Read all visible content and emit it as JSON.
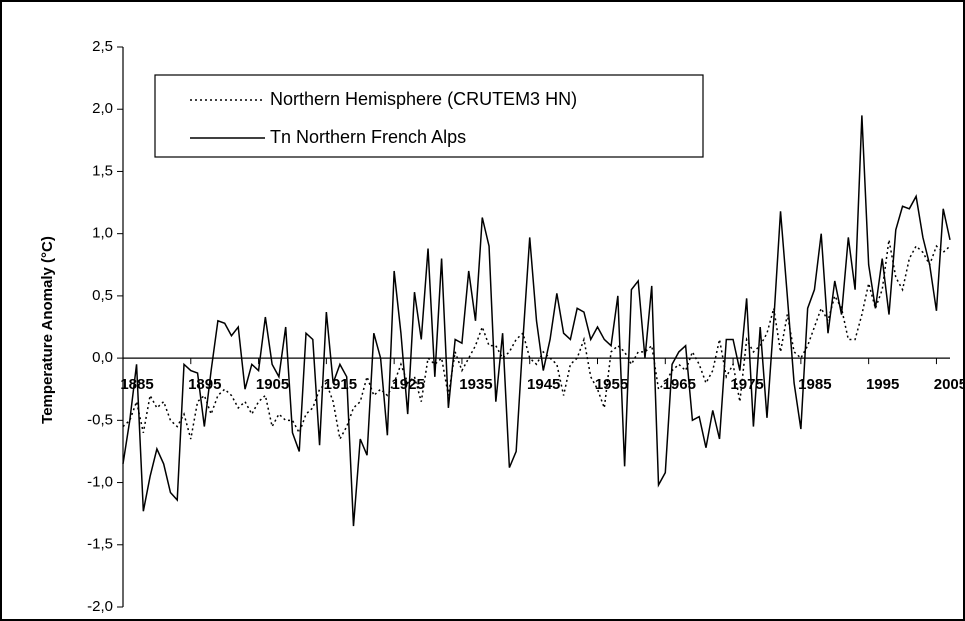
{
  "chart_data": {
    "type": "line",
    "y_label": "Temperature Anomaly (°C)",
    "x": [
      1885,
      1886,
      1887,
      1888,
      1889,
      1890,
      1891,
      1892,
      1893,
      1894,
      1895,
      1896,
      1897,
      1898,
      1899,
      1900,
      1901,
      1902,
      1903,
      1904,
      1905,
      1906,
      1907,
      1908,
      1909,
      1910,
      1911,
      1912,
      1913,
      1914,
      1915,
      1916,
      1917,
      1918,
      1919,
      1920,
      1921,
      1922,
      1923,
      1924,
      1925,
      1926,
      1927,
      1928,
      1929,
      1930,
      1931,
      1932,
      1933,
      1934,
      1935,
      1936,
      1937,
      1938,
      1939,
      1940,
      1941,
      1942,
      1943,
      1944,
      1945,
      1946,
      1947,
      1948,
      1949,
      1950,
      1951,
      1952,
      1953,
      1954,
      1955,
      1956,
      1957,
      1958,
      1959,
      1960,
      1961,
      1962,
      1963,
      1964,
      1965,
      1966,
      1967,
      1968,
      1969,
      1970,
      1971,
      1972,
      1973,
      1974,
      1975,
      1976,
      1977,
      1978,
      1979,
      1980,
      1981,
      1982,
      1983,
      1984,
      1985,
      1986,
      1987,
      1988,
      1989,
      1990,
      1991,
      1992,
      1993,
      1994,
      1995,
      1996,
      1997,
      1998,
      1999,
      2000,
      2001,
      2002,
      2003,
      2004,
      2005,
      2006,
      2007
    ],
    "series": [
      {
        "name": "Northern Hemisphere (CRUTEM3 HN)",
        "color": "#000000",
        "dashed": true,
        "values": [
          -0.55,
          -0.5,
          -0.35,
          -0.6,
          -0.3,
          -0.4,
          -0.35,
          -0.5,
          -0.55,
          -0.45,
          -0.65,
          -0.35,
          -0.3,
          -0.45,
          -0.3,
          -0.25,
          -0.3,
          -0.4,
          -0.35,
          -0.45,
          -0.35,
          -0.3,
          -0.55,
          -0.45,
          -0.5,
          -0.5,
          -0.6,
          -0.45,
          -0.4,
          -0.25,
          -0.2,
          -0.35,
          -0.65,
          -0.55,
          -0.4,
          -0.35,
          -0.15,
          -0.3,
          -0.25,
          -0.3,
          -0.2,
          -0.05,
          -0.2,
          -0.15,
          -0.35,
          0.0,
          -0.05,
          0.0,
          -0.3,
          0.05,
          -0.1,
          0.0,
          0.1,
          0.25,
          0.1,
          0.1,
          0.0,
          0.05,
          0.15,
          0.2,
          0.0,
          -0.05,
          0.05,
          0.0,
          -0.05,
          -0.3,
          -0.05,
          0.0,
          0.15,
          -0.15,
          -0.25,
          -0.4,
          0.05,
          0.1,
          0.05,
          -0.05,
          0.05,
          0.05,
          0.1,
          -0.25,
          -0.2,
          -0.1,
          -0.05,
          -0.1,
          0.05,
          -0.05,
          -0.2,
          -0.1,
          0.15,
          -0.15,
          -0.05,
          -0.35,
          0.15,
          0.05,
          0.1,
          0.2,
          0.4,
          0.05,
          0.35,
          0.05,
          0.0,
          0.1,
          0.25,
          0.4,
          0.3,
          0.5,
          0.4,
          0.15,
          0.15,
          0.35,
          0.6,
          0.4,
          0.55,
          0.95,
          0.65,
          0.55,
          0.8,
          0.9,
          0.85,
          0.75,
          0.9,
          0.85,
          0.9
        ]
      },
      {
        "name": "Tn Northern French Alps",
        "color": "#000000",
        "dashed": false,
        "values": [
          -0.85,
          -0.5,
          -0.05,
          -1.23,
          -0.95,
          -0.73,
          -0.85,
          -1.08,
          -1.14,
          -0.05,
          -0.1,
          -0.12,
          -0.55,
          -0.1,
          0.3,
          0.28,
          0.18,
          0.25,
          -0.25,
          -0.05,
          -0.1,
          0.33,
          -0.05,
          -0.15,
          0.25,
          -0.6,
          -0.75,
          0.2,
          0.15,
          -0.7,
          0.37,
          -0.2,
          -0.05,
          -0.15,
          -1.35,
          -0.65,
          -0.78,
          0.2,
          0.0,
          -0.62,
          0.7,
          0.2,
          -0.45,
          0.53,
          0.15,
          0.88,
          -0.15,
          0.8,
          -0.4,
          0.15,
          0.12,
          0.7,
          0.3,
          1.13,
          0.9,
          -0.35,
          0.2,
          -0.88,
          -0.75,
          0.15,
          0.97,
          0.3,
          -0.1,
          0.15,
          0.52,
          0.2,
          0.15,
          0.4,
          0.37,
          0.15,
          0.25,
          0.15,
          0.1,
          0.5,
          -0.87,
          0.55,
          0.62,
          0.0,
          0.58,
          -1.02,
          -0.92,
          -0.05,
          0.05,
          0.1,
          -0.5,
          -0.47,
          -0.72,
          -0.42,
          -0.65,
          0.15,
          0.15,
          -0.1,
          0.48,
          -0.55,
          0.25,
          -0.48,
          0.3,
          1.18,
          0.5,
          -0.2,
          -0.57,
          0.4,
          0.55,
          1.0,
          0.2,
          0.62,
          0.35,
          0.97,
          0.55,
          1.95,
          0.75,
          0.4,
          0.8,
          0.35,
          1.03,
          1.22,
          1.2,
          1.3,
          0.97,
          0.75,
          0.38,
          1.2,
          0.95
        ]
      }
    ],
    "xlim": [
      1885,
      2007
    ],
    "xticks": [
      1885,
      1895,
      1905,
      1915,
      1925,
      1935,
      1945,
      1955,
      1965,
      1975,
      1985,
      1995,
      2005
    ],
    "ylim": [
      -2.0,
      2.5
    ],
    "yticks": [
      {
        "value": -2.0,
        "label": "-2,0"
      },
      {
        "value": -1.5,
        "label": "-1,5"
      },
      {
        "value": -1.0,
        "label": "-1,0"
      },
      {
        "value": -0.5,
        "label": "-0,5"
      },
      {
        "value": 0.0,
        "label": "0,0"
      },
      {
        "value": 0.5,
        "label": "0,5"
      },
      {
        "value": 1.0,
        "label": "1,0"
      },
      {
        "value": 1.5,
        "label": "1,5"
      },
      {
        "value": 2.0,
        "label": "2,0"
      },
      {
        "value": 2.5,
        "label": "2,5"
      }
    ]
  }
}
